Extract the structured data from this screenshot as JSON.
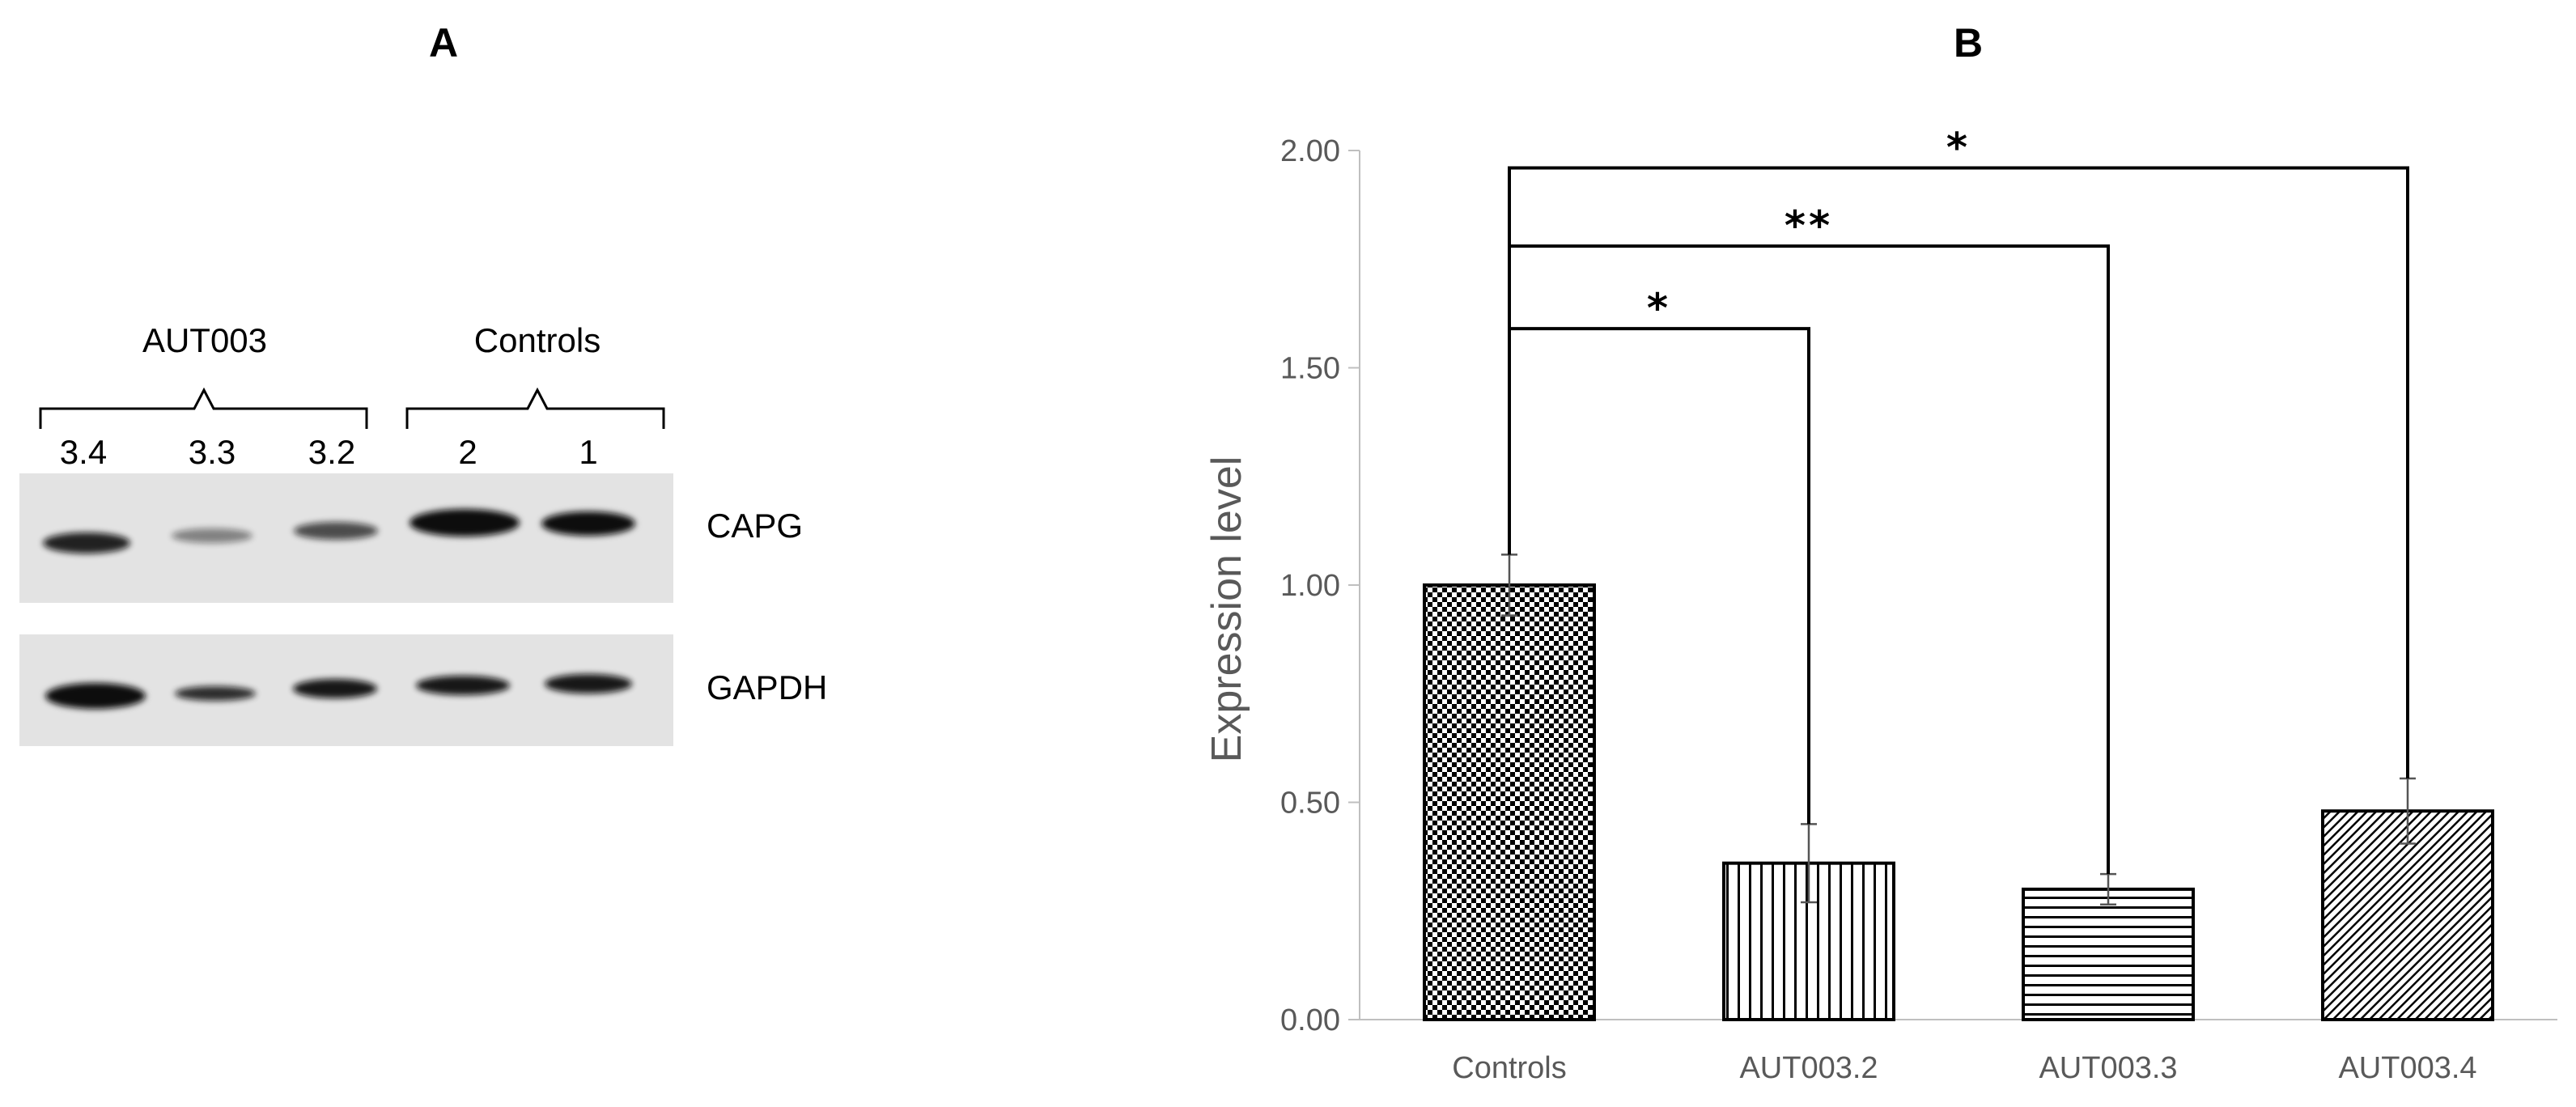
{
  "panel_a": {
    "label": "A",
    "group_labels": [
      "AUT003",
      "Controls"
    ],
    "lane_labels": [
      "3.4",
      "3.3",
      "3.2",
      "2",
      "1"
    ],
    "blot_labels": [
      "CAPG",
      "GAPDH"
    ]
  },
  "panel_b": {
    "label": "B"
  },
  "chart_data": {
    "type": "bar",
    "categories": [
      "Controls",
      "AUT003.2",
      "AUT003.3",
      "AUT003.4"
    ],
    "values": [
      1.0,
      0.36,
      0.3,
      0.48
    ],
    "errors": [
      0.07,
      0.09,
      0.035,
      0.075
    ],
    "patterns": [
      "checker",
      "vertical-lines",
      "horizontal-lines",
      "diagonal-hatch"
    ],
    "xlabel": "",
    "ylabel": "Expression level",
    "ylim": [
      0,
      2.0
    ],
    "yticks": [
      "0.00",
      "0.50",
      "1.00",
      "1.50",
      "2.00"
    ],
    "grid": false,
    "significance": [
      {
        "from": "Controls",
        "to": "AUT003.2",
        "label": "*",
        "level": 1.59
      },
      {
        "from": "Controls",
        "to": "AUT003.3",
        "label": "**",
        "level": 1.78
      },
      {
        "from": "Controls",
        "to": "AUT003.4",
        "label": "*",
        "level": 1.96
      }
    ]
  },
  "colors": {
    "axis": "#bfbfbf",
    "tick_text": "#595959",
    "bar_stroke": "#000000",
    "blot_bg": "#e3e3e3"
  }
}
